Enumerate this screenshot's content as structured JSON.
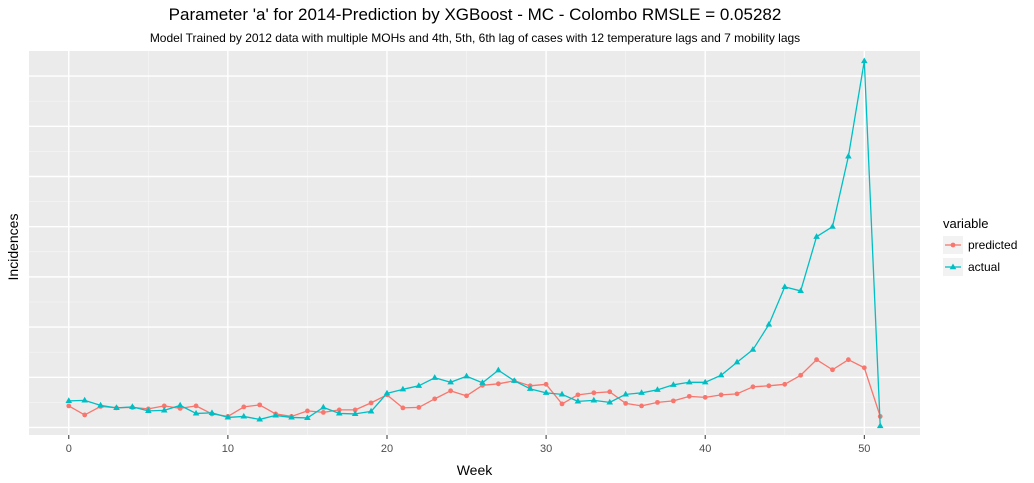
{
  "chart_data": {
    "type": "line",
    "title": "Parameter 'a' for 2014-Prediction by XGBoost -  MC - Colombo  RMSLE =  0.05282",
    "subtitle": "Model Trained by 2012 data with multiple MOHs and 4th, 5th, 6th lag of cases with 12 temperature lags and 7 mobility lags",
    "xlabel": "Week",
    "ylabel": "Incidences",
    "xlim": [
      -2.5,
      53.5
    ],
    "ylim": [
      -0.15,
      7.5
    ],
    "x_ticks": [
      0,
      10,
      20,
      30,
      40,
      50
    ],
    "x_tick_labels": [
      "0",
      "10",
      "20",
      "30",
      "40",
      "50"
    ],
    "y_gridlines": [
      0,
      1,
      2,
      3,
      4,
      5,
      6,
      7
    ],
    "grid": true,
    "legend": {
      "title": "variable",
      "position": "right"
    },
    "x": [
      0,
      1,
      2,
      3,
      4,
      5,
      6,
      7,
      8,
      9,
      10,
      11,
      12,
      13,
      14,
      15,
      16,
      17,
      18,
      19,
      20,
      21,
      22,
      23,
      24,
      25,
      26,
      27,
      28,
      29,
      30,
      31,
      32,
      33,
      34,
      35,
      36,
      37,
      38,
      39,
      40,
      41,
      42,
      43,
      44,
      45,
      46,
      47,
      48,
      49,
      50,
      51
    ],
    "series": [
      {
        "name": "predicted",
        "color": "#F8766D",
        "marker": "circle",
        "values": [
          0.43,
          0.25,
          0.42,
          0.39,
          0.4,
          0.37,
          0.43,
          0.38,
          0.43,
          0.27,
          0.22,
          0.41,
          0.45,
          0.27,
          0.22,
          0.33,
          0.3,
          0.35,
          0.35,
          0.49,
          0.65,
          0.39,
          0.4,
          0.57,
          0.73,
          0.63,
          0.84,
          0.87,
          0.93,
          0.83,
          0.86,
          0.47,
          0.65,
          0.69,
          0.71,
          0.48,
          0.43,
          0.5,
          0.53,
          0.62,
          0.6,
          0.65,
          0.67,
          0.81,
          0.83,
          0.86,
          1.04,
          1.35,
          1.15,
          1.35,
          1.19,
          0.22
        ]
      },
      {
        "name": "actual",
        "color": "#00BFC4",
        "marker": "triangle",
        "values": [
          0.53,
          0.54,
          0.44,
          0.39,
          0.41,
          0.33,
          0.34,
          0.44,
          0.28,
          0.29,
          0.2,
          0.22,
          0.16,
          0.24,
          0.2,
          0.19,
          0.4,
          0.28,
          0.27,
          0.32,
          0.68,
          0.76,
          0.83,
          0.99,
          0.9,
          1.02,
          0.89,
          1.14,
          0.93,
          0.77,
          0.69,
          0.66,
          0.52,
          0.54,
          0.5,
          0.66,
          0.69,
          0.75,
          0.85,
          0.9,
          0.9,
          1.04,
          1.3,
          1.55,
          2.05,
          2.8,
          2.72,
          3.8,
          4.0,
          5.4,
          7.3,
          0.03
        ]
      }
    ]
  }
}
